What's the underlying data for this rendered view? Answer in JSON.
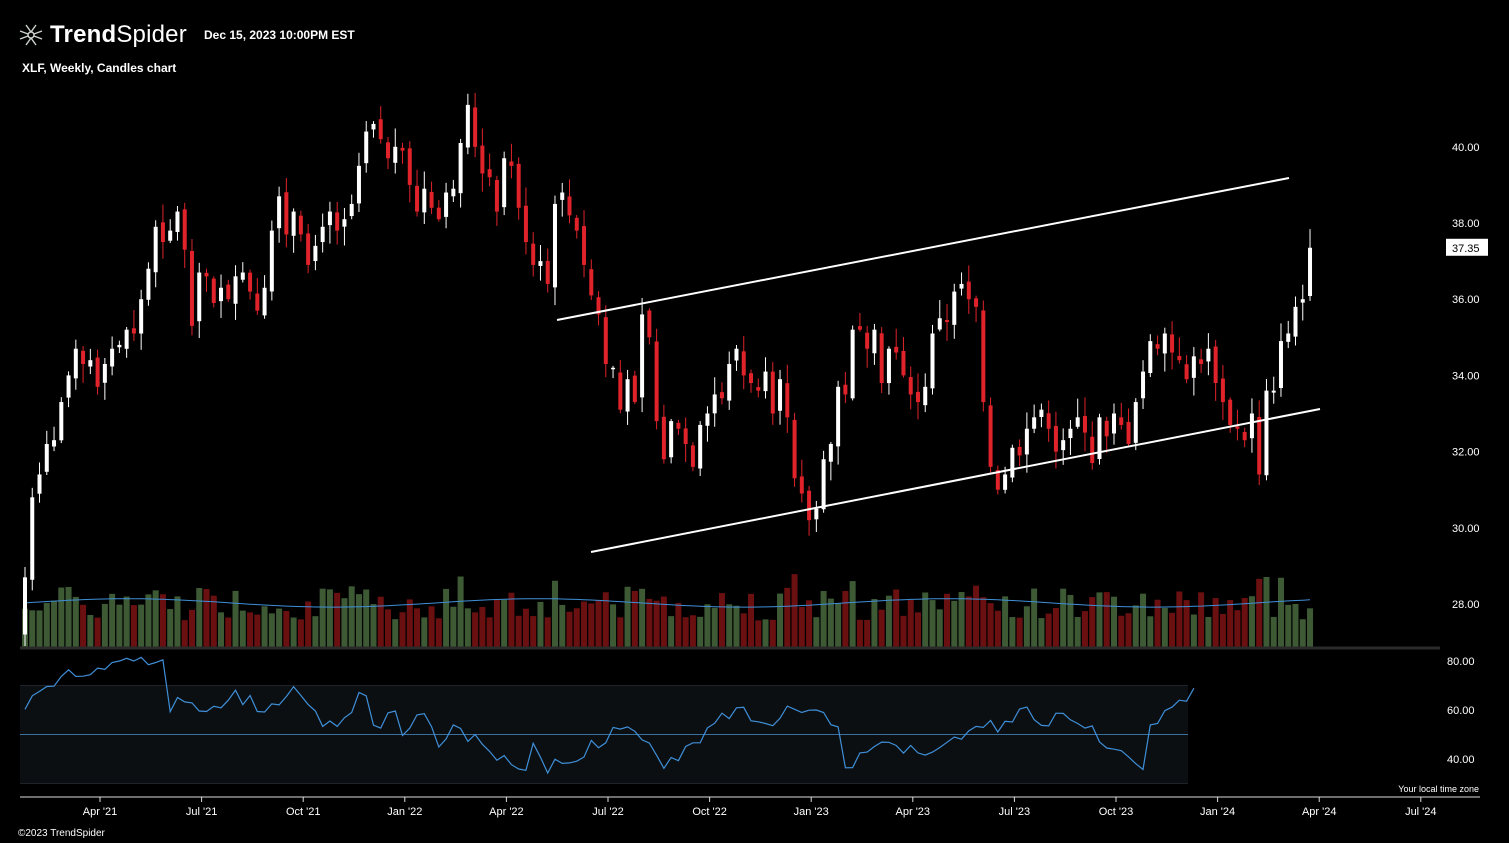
{
  "header": {
    "brand_bold": "Trend",
    "brand_light": "Spider",
    "date": "Dec 15, 2023 10:00PM EST",
    "subtitle": "XLF, Weekly, Candles chart"
  },
  "footer": {
    "copyright": "©2023 TrendSpider",
    "timezone": "Your local time zone"
  },
  "colors": {
    "up": "#ffffff",
    "down": "#e0232a",
    "vol_up": "#3d5a35",
    "vol_down": "#6b1010",
    "vol_ma": "#3f8fd8",
    "rsi": "#3f8fd8",
    "trendline": "#ffffff"
  },
  "chart_data": [
    {
      "type": "candlestick",
      "title": "XLF, Weekly, Candles chart",
      "ylim": [
        26.8,
        41.2
      ],
      "y_ticks": [
        28,
        30,
        32,
        34,
        36,
        38,
        40
      ],
      "y_tick_labels": [
        "28.00",
        "30.00",
        "32.00",
        "34.00",
        "36.00",
        "38.00",
        "40.00"
      ],
      "x_ticks": [
        "Apr '21",
        "Jul '21",
        "Oct '21",
        "Jan '22",
        "Apr '22",
        "Jul '22",
        "Oct '22",
        "Jan '23",
        "Apr '23",
        "Jul '23",
        "Oct '23",
        "Jan '24",
        "Apr '24",
        "Jul '24"
      ],
      "last_price": "37.35",
      "close": [
        28.7,
        30.8,
        31.4,
        32.2,
        32.3,
        33.3,
        34.0,
        34.7,
        34.3,
        34.4,
        33.7,
        34.3,
        34.7,
        34.8,
        35.2,
        35.1,
        36.0,
        36.8,
        37.9,
        37.5,
        37.8,
        38.3,
        37.3,
        35.3,
        36.7,
        36.6,
        35.9,
        36.3,
        36.0,
        36.6,
        36.7,
        36.2,
        35.7,
        36.3,
        37.8,
        38.7,
        37.7,
        38.3,
        37.7,
        36.9,
        37.4,
        37.9,
        38.3,
        37.8,
        38.1,
        38.5,
        39.5,
        40.4,
        40.6,
        40.2,
        39.7,
        40.0,
        39.9,
        39.0,
        38.3,
        38.9,
        38.4,
        38.1,
        38.8,
        38.9,
        40.1,
        41.1,
        40.0,
        39.3,
        39.2,
        38.3,
        39.7,
        39.5,
        38.4,
        37.5,
        36.9,
        37.0,
        36.4,
        38.5,
        38.8,
        38.2,
        37.8,
        36.9,
        36.1,
        35.6,
        34.3,
        34.2,
        33.1,
        33.9,
        33.3,
        35.6,
        35.0,
        32.8,
        31.8,
        32.8,
        32.6,
        32.2,
        31.6,
        32.7,
        33.0,
        33.5,
        33.4,
        34.3,
        34.7,
        34.0,
        33.8,
        33.6,
        34.1,
        33.0,
        33.9,
        32.9,
        31.3,
        30.9,
        30.2,
        30.5,
        31.8,
        32.2,
        33.7,
        33.5,
        35.2,
        35.2,
        34.7,
        35.2,
        33.8,
        34.7,
        34.6,
        34.0,
        33.5,
        33.3,
        33.7,
        35.1,
        35.5,
        35.4,
        36.2,
        36.4,
        36.0,
        35.8,
        33.3,
        31.6,
        31.0,
        31.4,
        32.1,
        31.9,
        32.6,
        32.9,
        33.1,
        32.6,
        32.0,
        32.3,
        32.6,
        32.9,
        32.5,
        31.7,
        32.9,
        32.4,
        33.0,
        32.7,
        32.2,
        33.3,
        34.1,
        34.9,
        34.7,
        35.1,
        34.6,
        34.4,
        33.9,
        34.5,
        34.3,
        34.7,
        33.8,
        33.3,
        32.7,
        32.6,
        32.3,
        33.0,
        31.4,
        33.6,
        33.6,
        34.9,
        35.1,
        35.8,
        36.0,
        37.35
      ]
    },
    {
      "type": "bar",
      "title": "Volume",
      "ma_value": 0.63
    },
    {
      "type": "line",
      "title": "RSI",
      "ylim": [
        27,
        88
      ],
      "y_ticks": [
        40,
        60,
        80
      ],
      "y_tick_labels": [
        "40.00",
        "60.00",
        "80.00"
      ],
      "band": [
        30,
        70
      ],
      "midline": 50,
      "values": [
        60.3,
        65.8,
        67.6,
        69.6,
        69.7,
        73.7,
        76.4,
        73.7,
        73.8,
        74.4,
        77.1,
        76.6,
        79.4,
        80.0,
        81.1,
        80.0,
        81.5,
        78.5,
        79.4,
        80.5,
        59.3,
        65.1,
        63.3,
        62.9,
        59.6,
        59.4,
        61.5,
        60.9,
        64.0,
        68.1,
        62.2,
        65.9,
        59.4,
        59.2,
        62.5,
        62.1,
        65.5,
        69.5,
        65.9,
        62.3,
        59.6,
        53.3,
        55.5,
        53.3,
        56.8,
        59.0,
        67.2,
        65.8,
        53.8,
        52.6,
        58.8,
        59.6,
        49.6,
        52.6,
        58.0,
        58.5,
        53.2,
        44.9,
        48.2,
        53.9,
        52.5,
        47.2,
        50.0,
        46.0,
        43.1,
        39.5,
        41.4,
        37.7,
        35.9,
        35.4,
        46.4,
        40.7,
        34.3,
        39.9,
        38.2,
        38.4,
        39.1,
        40.8,
        47.6,
        44.6,
        46.6,
        52.9,
        52.2,
        53.1,
        51.3,
        47.8,
        46.5,
        41.5,
        36.2,
        40.6,
        39.3,
        45.1,
        46.6,
        46.6,
        52.7,
        54.6,
        58.7,
        56.5,
        60.9,
        61.1,
        55.6,
        55.2,
        54.5,
        53.6,
        56.6,
        61.6,
        60.3,
        59.0,
        59.9,
        60.0,
        59.0,
        54.0,
        53.1,
        36.4,
        36.5,
        42.5,
        42.8,
        45.1,
        46.9,
        46.8,
        45.5,
        42.4,
        45.5,
        42.5,
        41.6,
        42.8,
        44.7,
        46.8,
        49.0,
        48.1,
        51.5,
        53.3,
        52.9,
        55.7,
        51.0,
        55.4,
        55.1,
        60.4,
        61.2,
        56.1,
        53.7,
        53.5,
        58.7,
        58.6,
        56.0,
        54.5,
        52.6,
        53.5,
        47.0,
        44.5,
        44.0,
        43.4,
        40.9,
        38.1,
        35.7,
        53.9,
        54.5,
        59.7,
        61.2,
        64.0,
        63.6,
        68.9
      ]
    }
  ]
}
